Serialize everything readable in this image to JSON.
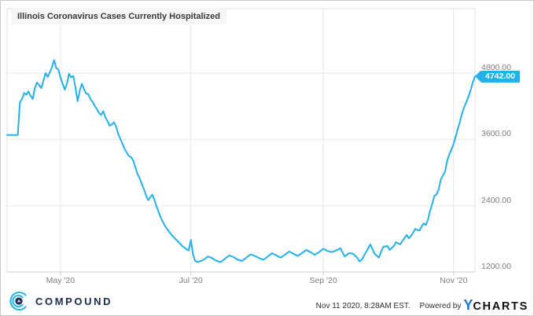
{
  "header": {
    "title": "Illinois Coronavirus Cases Currently Hospitalized"
  },
  "badge": {
    "value_label": "4742.00"
  },
  "footer": {
    "compound_label": "COMPOUND",
    "timestamp": "Nov 11 2020, 8:28AM EST.",
    "powered_by": "Powered by",
    "ycharts_y": "Y",
    "ycharts_rest": "CHARTS"
  },
  "colors": {
    "line": "#25b0ea",
    "badge_bg": "#25b0ea",
    "grid": "#e7e7e7",
    "plot_border": "#dcdcdc",
    "axis_line": "#c9c9c9",
    "axis_text": "#7d7d7d",
    "compound_navy": "#1b2a4e",
    "compound_cyan": "#29b5e8",
    "ycharts_blue": "#2472d8"
  },
  "chart_data": {
    "type": "line",
    "title": "Illinois Coronavirus Cases Currently Hospitalized",
    "grid": true,
    "legend": "none",
    "x_unit": "days (daily series, Apr 2020 through Nov 11 2020)",
    "x_range_days": [
      0,
      219
    ],
    "ylim": [
      1200,
      5950
    ],
    "last_value": 4742,
    "y_ticks": [
      {
        "value": 4800,
        "label": "4800.00"
      },
      {
        "value": 3600,
        "label": "3600.00"
      },
      {
        "value": 2400,
        "label": "2400.00"
      },
      {
        "value": 1200,
        "label": "1200.00"
      }
    ],
    "x_ticks": [
      {
        "day": 25,
        "label": "May '20"
      },
      {
        "day": 86,
        "label": "Jul '20"
      },
      {
        "day": 148,
        "label": "Sep '20"
      },
      {
        "day": 209,
        "label": "Nov '20"
      }
    ],
    "series": [
      {
        "name": "Illinois Coronavirus Cases Currently Hospitalized",
        "points": [
          [
            0,
            3680
          ],
          [
            5,
            3680
          ],
          [
            6,
            4270
          ],
          [
            7,
            4330
          ],
          [
            8,
            4440
          ],
          [
            9,
            4410
          ],
          [
            10,
            4470
          ],
          [
            11,
            4390
          ],
          [
            12,
            4330
          ],
          [
            13,
            4530
          ],
          [
            14,
            4630
          ],
          [
            15,
            4580
          ],
          [
            16,
            4530
          ],
          [
            17,
            4660
          ],
          [
            18,
            4800
          ],
          [
            19,
            4730
          ],
          [
            20,
            4810
          ],
          [
            21,
            4910
          ],
          [
            22,
            5035
          ],
          [
            23,
            4890
          ],
          [
            24,
            4870
          ],
          [
            25,
            4720
          ],
          [
            26,
            4610
          ],
          [
            27,
            4500
          ],
          [
            28,
            4610
          ],
          [
            29,
            4790
          ],
          [
            30,
            4720
          ],
          [
            31,
            4750
          ],
          [
            32,
            4540
          ],
          [
            33,
            4290
          ],
          [
            34,
            4480
          ],
          [
            35,
            4610
          ],
          [
            36,
            4510
          ],
          [
            37,
            4430
          ],
          [
            38,
            4420
          ],
          [
            39,
            4330
          ],
          [
            40,
            4280
          ],
          [
            41,
            4210
          ],
          [
            42,
            4150
          ],
          [
            43,
            4080
          ],
          [
            44,
            4040
          ],
          [
            45,
            4110
          ],
          [
            46,
            4000
          ],
          [
            47,
            3930
          ],
          [
            48,
            3850
          ],
          [
            49,
            3870
          ],
          [
            50,
            3910
          ],
          [
            51,
            3830
          ],
          [
            52,
            3700
          ],
          [
            53,
            3610
          ],
          [
            54,
            3520
          ],
          [
            55,
            3430
          ],
          [
            56,
            3360
          ],
          [
            57,
            3300
          ],
          [
            58,
            3280
          ],
          [
            59,
            3220
          ],
          [
            60,
            3100
          ],
          [
            61,
            2980
          ],
          [
            62,
            2900
          ],
          [
            63,
            2800
          ],
          [
            64,
            2700
          ],
          [
            65,
            2590
          ],
          [
            66,
            2500
          ],
          [
            67,
            2550
          ],
          [
            68,
            2600
          ],
          [
            69,
            2500
          ],
          [
            70,
            2380
          ],
          [
            71,
            2280
          ],
          [
            72,
            2180
          ],
          [
            73,
            2100
          ],
          [
            74,
            2030
          ],
          [
            75,
            1970
          ],
          [
            76,
            1920
          ],
          [
            77,
            1870
          ],
          [
            78,
            1830
          ],
          [
            79,
            1790
          ],
          [
            80,
            1750
          ],
          [
            81,
            1710
          ],
          [
            82,
            1670
          ],
          [
            83,
            1640
          ],
          [
            84,
            1610
          ],
          [
            85,
            1590
          ],
          [
            86,
            1780
          ],
          [
            87,
            1520
          ],
          [
            88,
            1400
          ],
          [
            89,
            1380
          ],
          [
            90,
            1390
          ],
          [
            92,
            1420
          ],
          [
            94,
            1480
          ],
          [
            96,
            1450
          ],
          [
            98,
            1400
          ],
          [
            100,
            1380
          ],
          [
            102,
            1440
          ],
          [
            104,
            1500
          ],
          [
            106,
            1470
          ],
          [
            108,
            1420
          ],
          [
            110,
            1400
          ],
          [
            112,
            1460
          ],
          [
            114,
            1520
          ],
          [
            116,
            1490
          ],
          [
            118,
            1450
          ],
          [
            120,
            1420
          ],
          [
            122,
            1480
          ],
          [
            124,
            1540
          ],
          [
            126,
            1500
          ],
          [
            128,
            1460
          ],
          [
            130,
            1510
          ],
          [
            132,
            1570
          ],
          [
            134,
            1530
          ],
          [
            136,
            1490
          ],
          [
            138,
            1540
          ],
          [
            140,
            1600
          ],
          [
            142,
            1560
          ],
          [
            144,
            1510
          ],
          [
            146,
            1560
          ],
          [
            148,
            1620
          ],
          [
            150,
            1580
          ],
          [
            152,
            1560
          ],
          [
            154,
            1590
          ],
          [
            156,
            1630
          ],
          [
            158,
            1480
          ],
          [
            160,
            1540
          ],
          [
            162,
            1530
          ],
          [
            164,
            1450
          ],
          [
            165,
            1390
          ],
          [
            166,
            1420
          ],
          [
            168,
            1560
          ],
          [
            170,
            1700
          ],
          [
            172,
            1530
          ],
          [
            174,
            1460
          ],
          [
            176,
            1655
          ],
          [
            178,
            1670
          ],
          [
            179,
            1600
          ],
          [
            181,
            1670
          ],
          [
            182,
            1740
          ],
          [
            184,
            1700
          ],
          [
            185,
            1760
          ],
          [
            186,
            1810
          ],
          [
            187,
            1870
          ],
          [
            188,
            1810
          ],
          [
            189,
            1850
          ],
          [
            190,
            1910
          ],
          [
            191,
            1980
          ],
          [
            192,
            1960
          ],
          [
            193,
            1950
          ],
          [
            194,
            2025
          ],
          [
            195,
            2080
          ],
          [
            196,
            2050
          ],
          [
            197,
            2150
          ],
          [
            198,
            2310
          ],
          [
            199,
            2440
          ],
          [
            200,
            2580
          ],
          [
            201,
            2600
          ],
          [
            202,
            2700
          ],
          [
            203,
            2870
          ],
          [
            204,
            2950
          ],
          [
            205,
            3020
          ],
          [
            206,
            3220
          ],
          [
            207,
            3330
          ],
          [
            208,
            3420
          ],
          [
            209,
            3520
          ],
          [
            210,
            3660
          ],
          [
            211,
            3800
          ],
          [
            212,
            3930
          ],
          [
            213,
            4080
          ],
          [
            214,
            4190
          ],
          [
            215,
            4280
          ],
          [
            216,
            4380
          ],
          [
            217,
            4500
          ],
          [
            218,
            4640
          ],
          [
            219,
            4742
          ]
        ]
      }
    ]
  }
}
